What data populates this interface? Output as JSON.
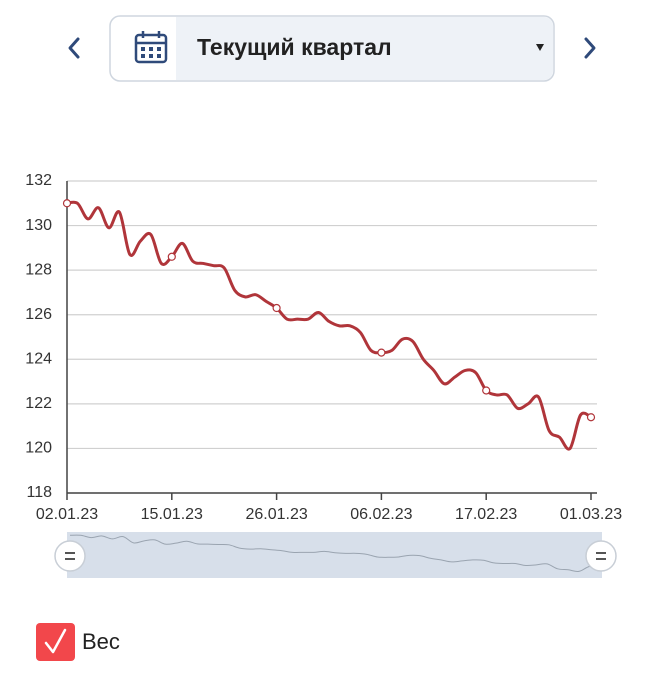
{
  "header": {
    "period": "Текущий квартал"
  },
  "chart_data": {
    "type": "line",
    "categories": [
      "02.01.23",
      null,
      null,
      null,
      null,
      null,
      null,
      null,
      null,
      null,
      "15.01.23",
      null,
      null,
      null,
      null,
      null,
      null,
      null,
      null,
      null,
      "26.01.23",
      null,
      null,
      null,
      null,
      null,
      null,
      null,
      null,
      null,
      "06.02.23",
      null,
      null,
      null,
      null,
      null,
      null,
      null,
      null,
      null,
      "17.02.23",
      null,
      null,
      null,
      null,
      null,
      null,
      null,
      null,
      null,
      "01.03.23"
    ],
    "series": [
      {
        "name": "Вес",
        "color": "#b0353a",
        "values": [
          131.0,
          131.0,
          130.3,
          130.8,
          129.9,
          130.6,
          128.7,
          129.3,
          129.6,
          128.3,
          128.6,
          129.2,
          128.4,
          128.3,
          128.2,
          128.1,
          127.1,
          126.8,
          126.9,
          126.6,
          126.3,
          125.8,
          125.8,
          125.8,
          126.1,
          125.7,
          125.5,
          125.5,
          125.2,
          124.4,
          124.3,
          124.4,
          124.9,
          124.8,
          124.0,
          123.5,
          122.9,
          123.2,
          123.5,
          123.4,
          122.6,
          122.4,
          122.4,
          121.8,
          122.0,
          122.3,
          120.8,
          120.5,
          120.0,
          121.5,
          121.4
        ]
      }
    ],
    "ylim": [
      118,
      132
    ],
    "yticks": [
      118,
      120,
      122,
      124,
      126,
      128,
      130,
      132
    ],
    "grid": true
  }
}
